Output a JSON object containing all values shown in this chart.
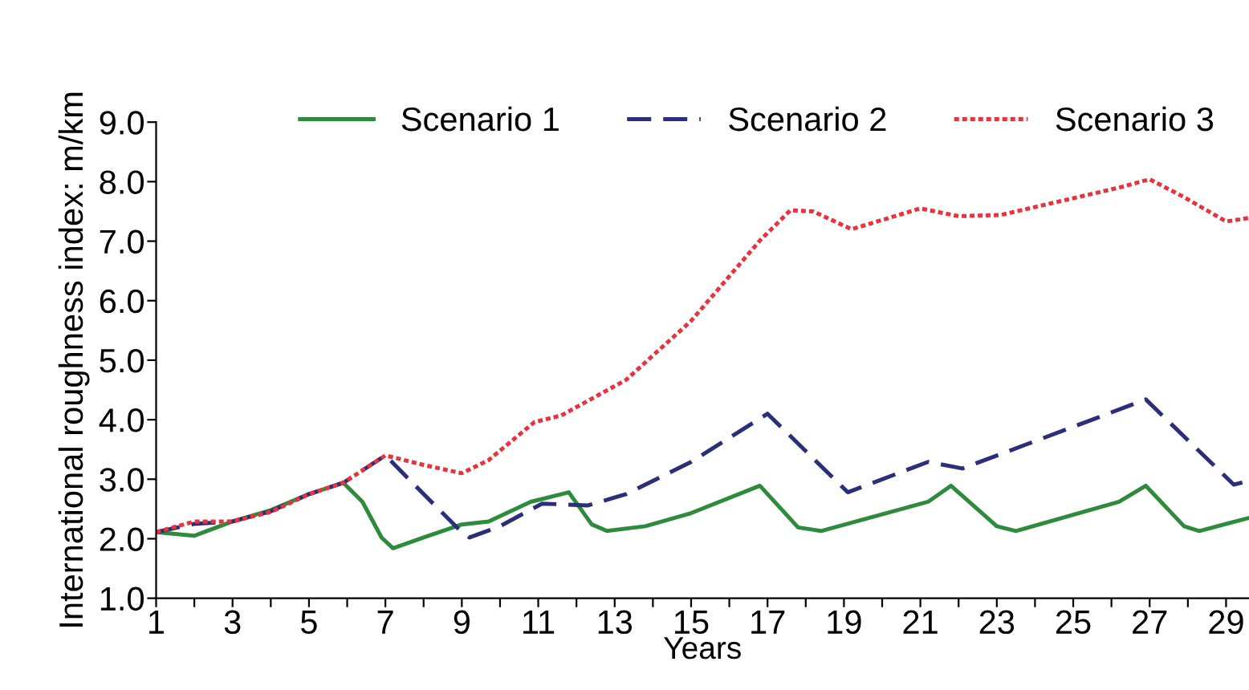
{
  "chart_data": {
    "type": "line",
    "xlabel": "Years",
    "ylabel": "International roughness index: m/km",
    "xlim": [
      1,
      29.6
    ],
    "ylim": [
      1,
      9
    ],
    "xticks": [
      1,
      {
        "value": 2,
        "label": null
      },
      3,
      {
        "value": 4,
        "label": null
      },
      5,
      {
        "value": 6,
        "label": null
      },
      7,
      {
        "value": 8,
        "label": null
      },
      9,
      {
        "value": 10,
        "label": null
      },
      11,
      {
        "value": 12,
        "label": null
      },
      13,
      {
        "value": 14,
        "label": null
      },
      15,
      {
        "value": 16,
        "label": null
      },
      17,
      {
        "value": 18,
        "label": null
      },
      19,
      {
        "value": 20,
        "label": null
      },
      21,
      {
        "value": 22,
        "label": null
      },
      23,
      {
        "value": 24,
        "label": null
      },
      25,
      {
        "value": 26,
        "label": null
      },
      27,
      {
        "value": 28,
        "label": null
      },
      29
    ],
    "yticks": [
      {
        "value": 1,
        "label": "1.0"
      },
      {
        "value": 2,
        "label": "2.0"
      },
      {
        "value": 3,
        "label": "3.0"
      },
      {
        "value": 4,
        "label": "4.0"
      },
      {
        "value": 5,
        "label": "5.0"
      },
      {
        "value": 6,
        "label": "6.0"
      },
      {
        "value": 7,
        "label": "7.0"
      },
      {
        "value": 8,
        "label": "8.0"
      },
      {
        "value": 9,
        "label": "9.0"
      }
    ],
    "grid": false,
    "legend": "top",
    "marker": "none",
    "series": [
      {
        "name": "Scenario 1",
        "color": "#2e8b3e",
        "line_style": "solid",
        "x": [
          1,
          2,
          3,
          4,
          5,
          5.9,
          6.4,
          6.9,
          7.2,
          8,
          9,
          9.7,
          10.8,
          11.8,
          12.4,
          12.8,
          13.8,
          15,
          16.8,
          17.8,
          18.4,
          21.2,
          21.8,
          23,
          23.5,
          26.2,
          26.9,
          27.9,
          28.3,
          29.6
        ],
        "values": [
          2.11,
          2.05,
          2.29,
          2.48,
          2.75,
          2.94,
          2.62,
          2.02,
          1.84,
          2.02,
          2.24,
          2.29,
          2.62,
          2.78,
          2.24,
          2.13,
          2.21,
          2.43,
          2.89,
          2.19,
          2.13,
          2.62,
          2.89,
          2.21,
          2.13,
          2.62,
          2.89,
          2.21,
          2.13,
          2.35
        ]
      },
      {
        "name": "Scenario 2",
        "color": "#2b2f7a",
        "line_style": "dashed",
        "x": [
          1,
          2,
          3,
          4,
          5,
          5.9,
          7,
          8,
          9,
          9.2,
          10,
          11.1,
          12.3,
          13.3,
          15,
          17,
          19.1,
          21.2,
          22.1,
          26.9,
          29.2,
          29.6
        ],
        "values": [
          2.11,
          2.25,
          2.29,
          2.46,
          2.75,
          2.94,
          3.4,
          2.75,
          2.11,
          2.02,
          2.21,
          2.59,
          2.56,
          2.75,
          3.29,
          4.1,
          2.78,
          3.29,
          3.18,
          4.34,
          2.91,
          2.97
        ]
      },
      {
        "name": "Scenario 3",
        "color": "#e8323c",
        "line_style": "dotted",
        "x": [
          1,
          2,
          3,
          4,
          5,
          5.9,
          7,
          8,
          9,
          9.7,
          10.9,
          11.6,
          13.3,
          15,
          16.8,
          17.6,
          18.2,
          19.2,
          21,
          22,
          23.1,
          26.2,
          27,
          27.9,
          29,
          29.6
        ],
        "values": [
          2.11,
          2.29,
          2.29,
          2.45,
          2.75,
          2.94,
          3.4,
          3.24,
          3.1,
          3.32,
          3.96,
          4.07,
          4.67,
          5.66,
          7.01,
          7.52,
          7.5,
          7.2,
          7.55,
          7.42,
          7.44,
          7.9,
          8.04,
          7.74,
          7.33,
          7.39
        ]
      }
    ]
  }
}
